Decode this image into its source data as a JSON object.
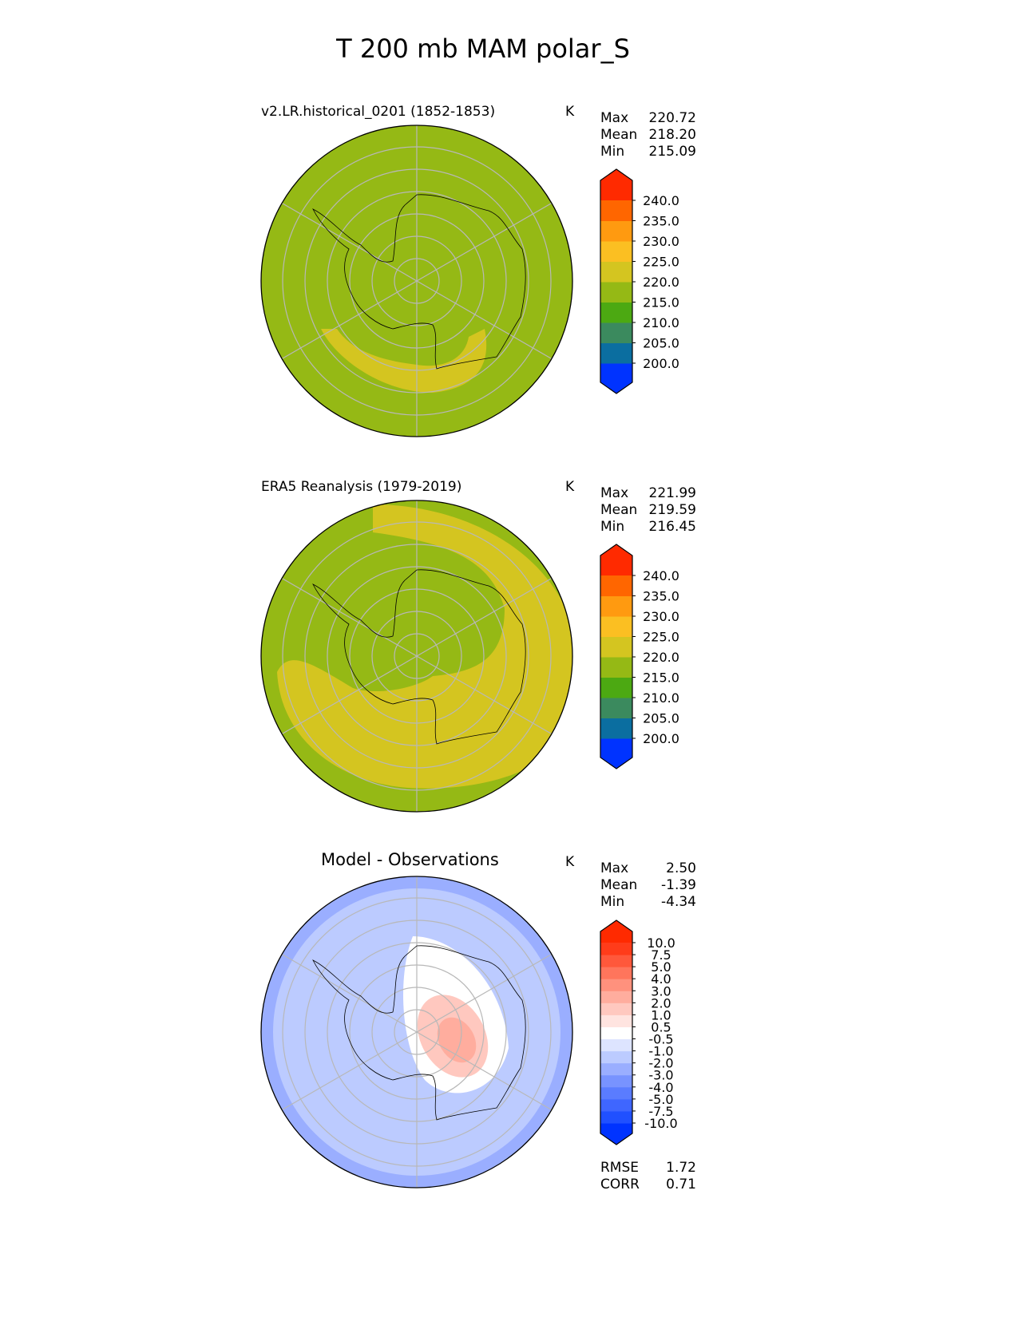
{
  "title": "T 200 mb MAM polar_S",
  "panels": [
    {
      "title": "v2.LR.historical_0201 (1852-1853)",
      "units": "K",
      "stats": {
        "max_label": "Max",
        "max": "220.72",
        "mean_label": "Mean",
        "mean": "218.20",
        "min_label": "Min",
        "min": "215.09"
      }
    },
    {
      "title": "ERA5 Reanalysis (1979-2019)",
      "units": "K",
      "stats": {
        "max_label": "Max",
        "max": "221.99",
        "mean_label": "Mean",
        "mean": "219.59",
        "min_label": "Min",
        "min": "216.45"
      }
    },
    {
      "title": "Model - Observations",
      "units": "K",
      "stats": {
        "max_label": "Max",
        "max": "2.50",
        "mean_label": "Mean",
        "mean": "-1.39",
        "min_label": "Min",
        "min": "-4.34"
      },
      "rmse_label": "RMSE",
      "rmse": "1.72",
      "corr_label": "CORR",
      "corr": "0.71"
    }
  ],
  "chart_data": {
    "type": "heatmap",
    "projection": "south-polar-stereographic",
    "colorbars": [
      {
        "levels": [
          "200.0",
          "205.0",
          "210.0",
          "215.0",
          "220.0",
          "225.0",
          "230.0",
          "235.0",
          "240.0"
        ],
        "colors": [
          "#0033ff",
          "#0b6ea0",
          "#3b8a5e",
          "#4ca912",
          "#95b915",
          "#d4c520",
          "#fbbf22",
          "#ff9a10",
          "#ff6600",
          "#ff2a00"
        ]
      },
      {
        "levels": [
          "-10.0",
          "-7.5",
          "-5.0",
          "-4.0",
          "-3.0",
          "-2.0",
          "-1.0",
          "-0.5",
          "0.5",
          "1.0",
          "2.0",
          "3.0",
          "4.0",
          "5.0",
          "7.5",
          "10.0"
        ],
        "colors": [
          "#0033ff",
          "#2050ff",
          "#3f66ff",
          "#5a7cff",
          "#7893ff",
          "#9aaeff",
          "#bccbff",
          "#dde4ff",
          "#ffffff",
          "#ffe4e0",
          "#ffc8bf",
          "#ffad9e",
          "#ff917d",
          "#ff755c",
          "#ff583b",
          "#ff3c1a",
          "#ff2a00"
        ]
      }
    ],
    "field_colors": {
      "model_bg": "#95b915",
      "model_band": "#d4c520",
      "diff_bg": "#bccbff",
      "diff_edge": "#9aaeff",
      "diff_white": "#ffffff",
      "diff_pos": "#ffc8bf"
    }
  }
}
